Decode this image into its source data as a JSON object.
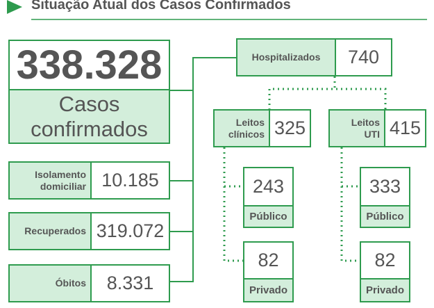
{
  "header": {
    "title": "Situação Atual dos Casos Confirmados"
  },
  "total": {
    "value": "338.328",
    "label": "Casos confirmados"
  },
  "summary": [
    {
      "label": "Isolamento domiciliar",
      "value": "10.185"
    },
    {
      "label": "Recuperados",
      "value": "319.072"
    },
    {
      "label": "Óbitos",
      "value": "8.331"
    }
  ],
  "hospitalized": {
    "label": "Hospitalizados",
    "value": "740",
    "beds": [
      {
        "label": "Leitos clínicos",
        "value": "325",
        "public": {
          "value": "243",
          "label": "Público"
        },
        "private": {
          "value": "82",
          "label": "Privado"
        }
      },
      {
        "label": "Leitos UTI",
        "value": "415",
        "public": {
          "value": "333",
          "label": "Público"
        },
        "private": {
          "value": "82",
          "label": "Privado"
        }
      }
    ]
  }
}
